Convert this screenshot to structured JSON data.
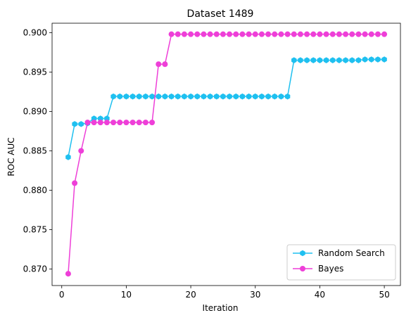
{
  "chart_data": {
    "type": "line",
    "title": "Dataset 1489",
    "xlabel": "Iteration",
    "ylabel": "ROC AUC",
    "xlim": [
      -1.5,
      52.5
    ],
    "ylim": [
      0.8679,
      0.9012
    ],
    "xticks": [
      0,
      10,
      20,
      30,
      40,
      50
    ],
    "yticks": [
      0.87,
      0.875,
      0.88,
      0.885,
      0.89,
      0.895,
      0.9
    ],
    "ytick_labels": [
      "0.870",
      "0.875",
      "0.880",
      "0.885",
      "0.890",
      "0.895",
      "0.900"
    ],
    "grid": false,
    "legend_position": "lower-right",
    "x": [
      1,
      2,
      3,
      4,
      5,
      6,
      7,
      8,
      9,
      10,
      11,
      12,
      13,
      14,
      15,
      16,
      17,
      18,
      19,
      20,
      21,
      22,
      23,
      24,
      25,
      26,
      27,
      28,
      29,
      30,
      31,
      32,
      33,
      34,
      35,
      36,
      37,
      38,
      39,
      40,
      41,
      42,
      43,
      44,
      45,
      46,
      47,
      48,
      49,
      50
    ],
    "series": [
      {
        "name": "Random Search",
        "color": "#1ec0f0",
        "marker": "hexagon",
        "values": [
          0.8842,
          0.8884,
          0.8884,
          0.8885,
          0.8891,
          0.8891,
          0.8891,
          0.8919,
          0.8919,
          0.8919,
          0.8919,
          0.8919,
          0.8919,
          0.8919,
          0.8919,
          0.8919,
          0.8919,
          0.8919,
          0.8919,
          0.8919,
          0.8919,
          0.8919,
          0.8919,
          0.8919,
          0.8919,
          0.8919,
          0.8919,
          0.8919,
          0.8919,
          0.8919,
          0.8919,
          0.8919,
          0.8919,
          0.8919,
          0.8919,
          0.8965,
          0.8965,
          0.8965,
          0.8965,
          0.8965,
          0.8965,
          0.8965,
          0.8965,
          0.8965,
          0.8965,
          0.8965,
          0.8966,
          0.8966,
          0.8966,
          0.8966
        ]
      },
      {
        "name": "Bayes",
        "color": "#ee3fd8",
        "marker": "circle",
        "values": [
          0.8694,
          0.8809,
          0.885,
          0.8886,
          0.8886,
          0.8886,
          0.8886,
          0.8886,
          0.8886,
          0.8886,
          0.8886,
          0.8886,
          0.8886,
          0.8886,
          0.896,
          0.896,
          0.8998,
          0.8998,
          0.8998,
          0.8998,
          0.8998,
          0.8998,
          0.8998,
          0.8998,
          0.8998,
          0.8998,
          0.8998,
          0.8998,
          0.8998,
          0.8998,
          0.8998,
          0.8998,
          0.8998,
          0.8998,
          0.8998,
          0.8998,
          0.8998,
          0.8998,
          0.8998,
          0.8998,
          0.8998,
          0.8998,
          0.8998,
          0.8998,
          0.8998,
          0.8998,
          0.8998,
          0.8998,
          0.8998,
          0.8998
        ]
      }
    ]
  }
}
